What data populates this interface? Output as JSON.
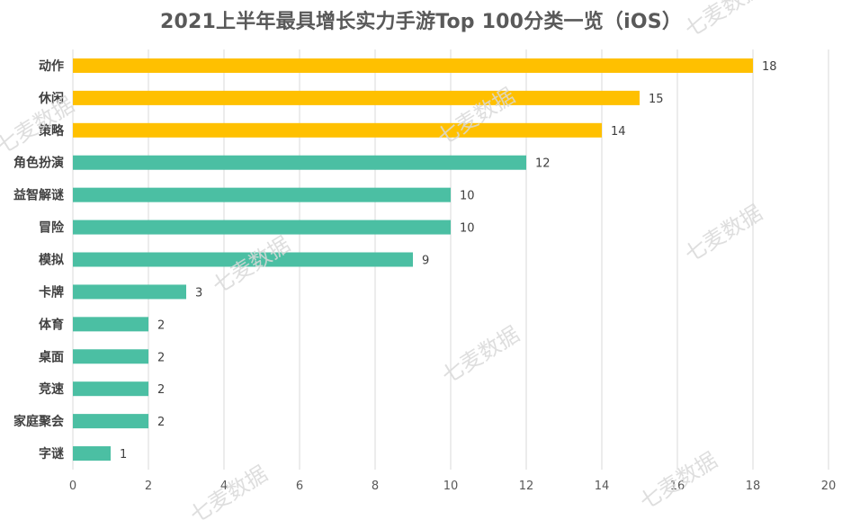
{
  "chart_data": {
    "type": "bar",
    "orientation": "horizontal",
    "title": "2021上半年最具增长实力手游Top 100分类一览（iOS）",
    "categories": [
      "动作",
      "休闲",
      "策略",
      "角色扮演",
      "益智解谜",
      "冒险",
      "模拟",
      "卡牌",
      "体育",
      "桌面",
      "竞速",
      "家庭聚会",
      "字谜"
    ],
    "values": [
      18,
      15,
      14,
      12,
      10,
      10,
      9,
      3,
      2,
      2,
      2,
      2,
      1
    ],
    "highlight_count": 3,
    "colors": {
      "highlight": "#FFC000",
      "default": "#4BBFA3"
    },
    "xlim": [
      0,
      20
    ],
    "xticks": [
      0,
      2,
      4,
      6,
      8,
      10,
      12,
      14,
      16,
      18,
      20
    ],
    "grid": "vertical",
    "data_labels": true
  },
  "watermark": "七麦数据"
}
